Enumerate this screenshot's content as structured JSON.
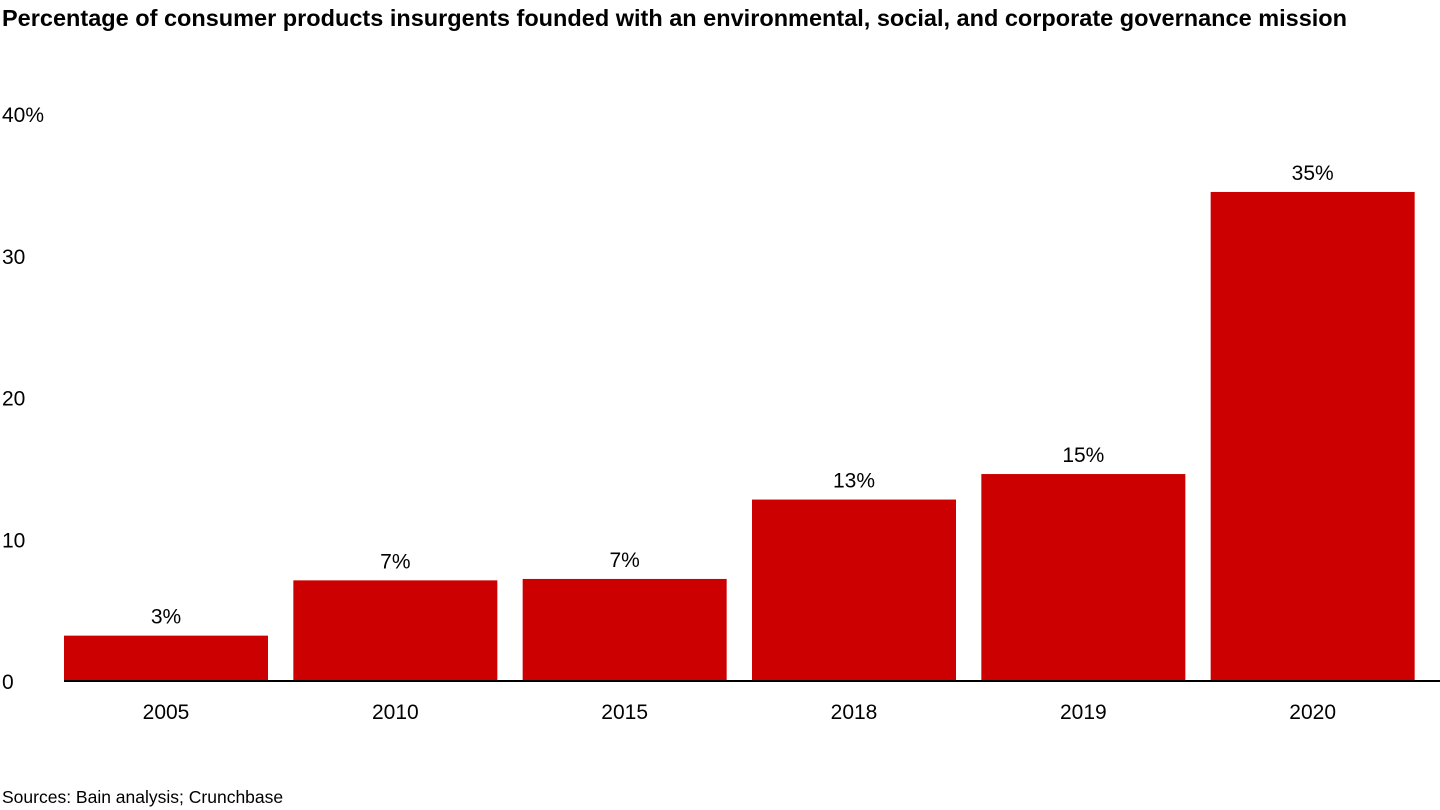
{
  "chart_data": {
    "type": "bar",
    "title": "Percentage of consumer products insurgents founded with an environmental, social, and corporate governance mission",
    "categories": [
      "2005",
      "2010",
      "2015",
      "2018",
      "2019",
      "2020"
    ],
    "values": [
      3.2,
      7.1,
      7.2,
      12.8,
      14.6,
      34.5
    ],
    "data_labels": [
      "3%",
      "7%",
      "7%",
      "13%",
      "15%",
      "35%"
    ],
    "ylim": [
      0,
      40
    ],
    "yticks": [
      0,
      10,
      20,
      30,
      40
    ],
    "ytick_labels": [
      "0",
      "10",
      "20",
      "30",
      "40%"
    ],
    "xlabel": "",
    "ylabel": "",
    "grid": false,
    "bar_color": "#cc0000",
    "source": "Sources: Bain analysis; Crunchbase"
  }
}
